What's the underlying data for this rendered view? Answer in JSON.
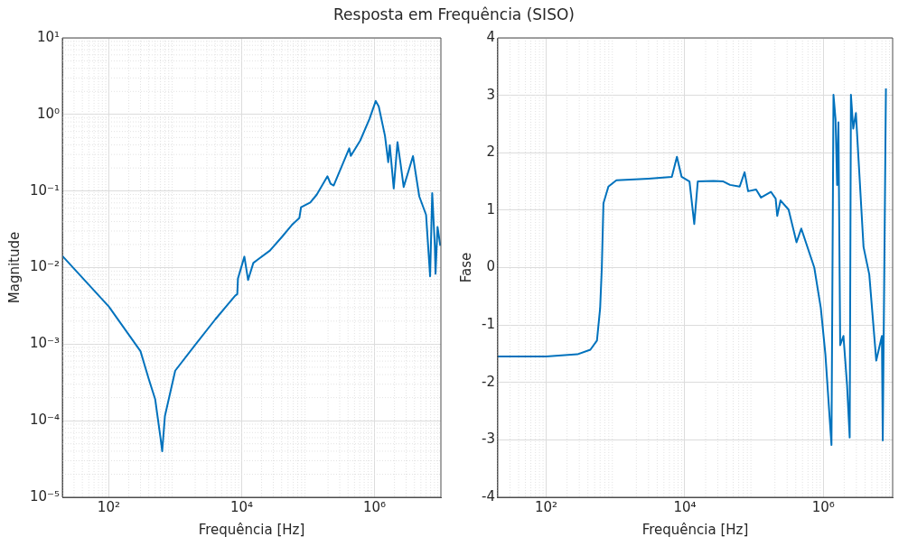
{
  "chart_data": [
    {
      "type": "line",
      "title": "Resposta em Frequência (SISO)",
      "xlabel": "Frequência [Hz]",
      "ylabel": "Magnitude",
      "log": "xy",
      "grid": true,
      "x": [
        20,
        100,
        300,
        400,
        500,
        600,
        637,
        700,
        1000,
        2000,
        4000,
        8000,
        8600,
        8800,
        11000,
        12500,
        15000,
        17400,
        26700,
        41000,
        57000,
        74000,
        78500,
        108000,
        135000,
        196000,
        219000,
        243000,
        417000,
        440000,
        610000,
        840000,
        1045000,
        1160000,
        1440000,
        1610000,
        1700000,
        1950000,
        2220000,
        2470000,
        2750000,
        3240000,
        3800000,
        4720000,
        5980000,
        6880000,
        7400000,
        8100000,
        8300000,
        8900000,
        9800000
      ],
      "series": [
        {
          "color": "#0072bd",
          "values": [
            0.0142,
            0.0031,
            0.00081,
            0.00035,
            0.00019,
            6e-05,
            4e-05,
            0.000115,
            0.00045,
            0.00098,
            0.0021,
            0.0043,
            0.0045,
            0.0072,
            0.0139,
            0.0069,
            0.0115,
            0.0127,
            0.0167,
            0.0255,
            0.036,
            0.0445,
            0.0616,
            0.071,
            0.0895,
            0.156,
            0.124,
            0.118,
            0.361,
            0.287,
            0.456,
            0.873,
            1.5,
            1.27,
            0.524,
            0.238,
            0.396,
            0.108,
            0.435,
            0.227,
            0.113,
            0.18,
            0.286,
            0.0853,
            0.0489,
            0.0077,
            0.0938,
            0.0193,
            0.0083,
            0.034,
            0.0193
          ]
        }
      ],
      "xlim": [
        20,
        10000000
      ],
      "xticks": [
        {
          "value": 100,
          "label": "10²"
        },
        {
          "value": 10000,
          "label": "10⁴"
        },
        {
          "value": 1000000,
          "label": "10⁶"
        }
      ],
      "ylim": [
        1e-05,
        10
      ],
      "yticks": [
        {
          "value": 1e-05,
          "label": "10⁻⁵"
        },
        {
          "value": 0.0001,
          "label": "10⁻⁴"
        },
        {
          "value": 0.001,
          "label": "10⁻³"
        },
        {
          "value": 0.01,
          "label": "10⁻²"
        },
        {
          "value": 0.1,
          "label": "10⁻¹"
        },
        {
          "value": 1,
          "label": "10⁰"
        },
        {
          "value": 10,
          "label": "10¹"
        }
      ]
    },
    {
      "type": "line",
      "xlabel": "Frequência [Hz]",
      "ylabel": "Fase",
      "log": "x",
      "grid": true,
      "x": [
        20,
        100,
        282,
        434,
        540,
        600,
        635,
        670,
        790,
        1030,
        3000,
        6500,
        7700,
        9000,
        11700,
        13700,
        15400,
        26000,
        36000,
        45000,
        62000,
        73000,
        82000,
        107000,
        126000,
        175000,
        205000,
        216000,
        241000,
        315000,
        410000,
        480000,
        740000,
        920000,
        1070000,
        1310000,
        1400000,
        1500000,
        1580000,
        1650000,
        1750000,
        1950000,
        2200000,
        2400000,
        2500000,
        2700000,
        2950000,
        3800000,
        4600000,
        5800000,
        7000000,
        7200000,
        8000000
      ],
      "series": [
        {
          "color": "#0072bd",
          "values": [
            -1.55,
            -1.55,
            -1.51,
            -1.43,
            -1.27,
            -0.71,
            0,
            1.12,
            1.41,
            1.52,
            1.55,
            1.58,
            1.93,
            1.58,
            1.5,
            0.76,
            1.5,
            1.51,
            1.5,
            1.44,
            1.41,
            1.66,
            1.33,
            1.36,
            1.22,
            1.32,
            1.2,
            0.9,
            1.17,
            1.01,
            0.44,
            0.68,
            0,
            -0.71,
            -1.51,
            -3.09,
            3.01,
            2.58,
            1.44,
            2.53,
            -1.35,
            -1.19,
            -2.05,
            -2.96,
            3.01,
            2.42,
            2.69,
            0.36,
            -0.12,
            -1.62,
            -1.19,
            -3.01,
            3.12
          ]
        }
      ],
      "xlim": [
        20,
        10000000
      ],
      "xticks": [
        {
          "value": 100,
          "label": "10²"
        },
        {
          "value": 10000,
          "label": "10⁴"
        },
        {
          "value": 1000000,
          "label": "10⁶"
        }
      ],
      "ylim": [
        -4,
        4
      ],
      "yticks": [
        -4,
        -3,
        -2,
        -1,
        0,
        1,
        2,
        3,
        4
      ]
    }
  ]
}
